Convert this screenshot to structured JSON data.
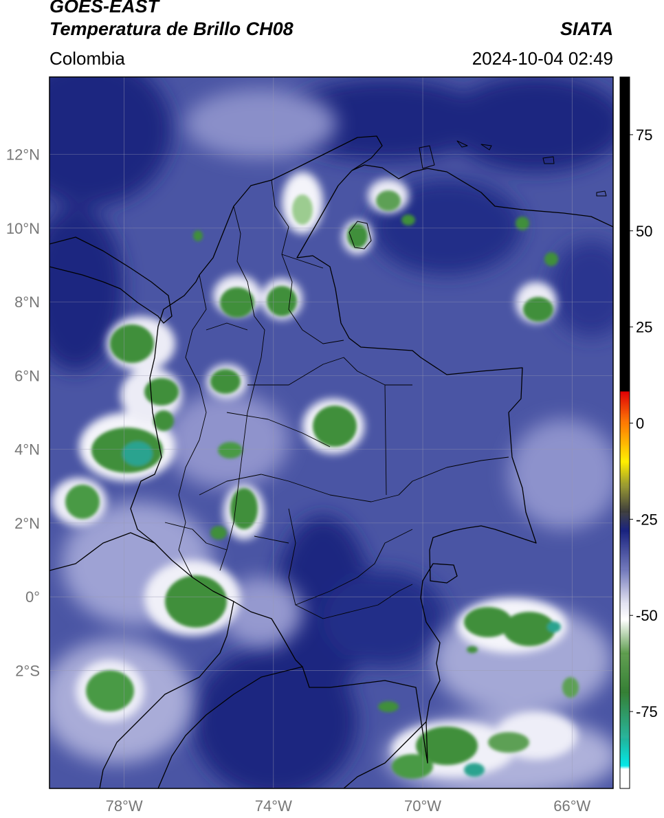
{
  "header": {
    "title_line1": "GOES-EAST",
    "title_line2": "Temperatura de Brillo CH08",
    "subtitle": "Colombia",
    "brand": "SIATA",
    "timestamp": "2024-10-04 02:49"
  },
  "map": {
    "lon_range": [
      -80,
      -64.9
    ],
    "lat_range": [
      -5.2,
      14.1
    ],
    "lon_ticks": [
      {
        "value": -78,
        "label": "78°W"
      },
      {
        "value": -74,
        "label": "74°W"
      },
      {
        "value": -70,
        "label": "70°W"
      },
      {
        "value": -66,
        "label": "66°W"
      }
    ],
    "lat_ticks": [
      {
        "value": 12,
        "label": "12°N"
      },
      {
        "value": 10,
        "label": "10°N"
      },
      {
        "value": 8,
        "label": "8°N"
      },
      {
        "value": 6,
        "label": "6°N"
      },
      {
        "value": 4,
        "label": "4°N"
      },
      {
        "value": 2,
        "label": "2°N"
      },
      {
        "value": 0,
        "label": "0°"
      },
      {
        "value": -2,
        "label": "2°S"
      }
    ],
    "grid": true,
    "background_color": "#4a55a4",
    "colors": {
      "dry_dark": "#1c2680",
      "moist_light": "#c9cbe6",
      "cloud_white": "#f4f4fa",
      "cold_green": "#3f8f3a",
      "cold_teal": "#2aa38f",
      "border": "#000000"
    }
  },
  "colorbar": {
    "range": [
      -95,
      90
    ],
    "ticks": [
      {
        "value": 75,
        "label": "75"
      },
      {
        "value": 50,
        "label": "50"
      },
      {
        "value": 25,
        "label": "25"
      },
      {
        "value": 0,
        "label": "0"
      },
      {
        "value": -25,
        "label": "-25"
      },
      {
        "value": -50,
        "label": "-50"
      },
      {
        "value": -75,
        "label": "-75"
      }
    ],
    "stops": [
      {
        "value": 90,
        "color": "#000000"
      },
      {
        "value": 8.5,
        "color": "#000000"
      },
      {
        "value": 8,
        "color": "#e00000"
      },
      {
        "value": 0,
        "color": "#ff7a00"
      },
      {
        "value": -10,
        "color": "#ffee00"
      },
      {
        "value": -16,
        "color": "#9c9c30"
      },
      {
        "value": -23,
        "color": "#3a3a3a"
      },
      {
        "value": -28,
        "color": "#101a7a"
      },
      {
        "value": -38,
        "color": "#6b72b8"
      },
      {
        "value": -47,
        "color": "#e4e4f2"
      },
      {
        "value": -51,
        "color": "#ffffff"
      },
      {
        "value": -60,
        "color": "#5a9a4a"
      },
      {
        "value": -70,
        "color": "#2d7a2d"
      },
      {
        "value": -82,
        "color": "#1fb39a"
      },
      {
        "value": -89,
        "color": "#00e8e8"
      },
      {
        "value": -90,
        "color": "#ffffff"
      },
      {
        "value": -95,
        "color": "#ffffff"
      }
    ]
  }
}
